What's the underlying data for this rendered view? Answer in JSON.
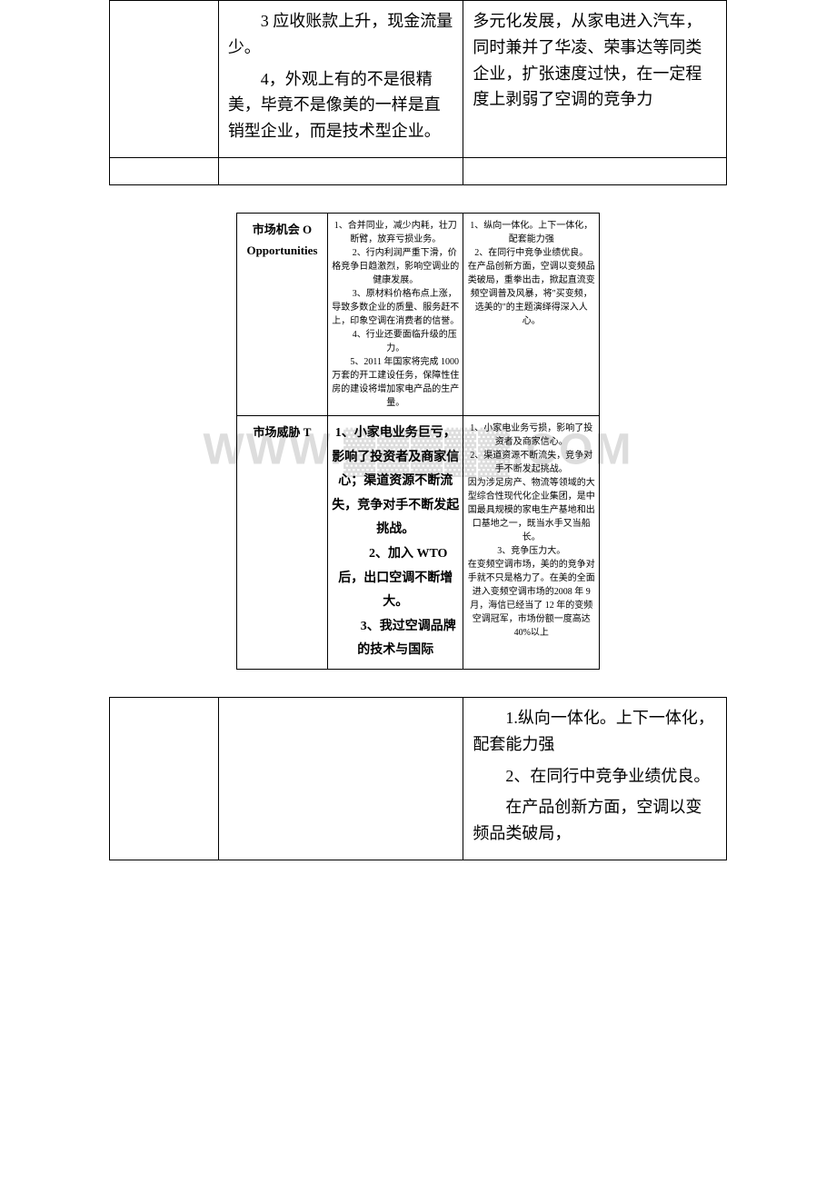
{
  "top": {
    "col2_p1": "　　3 应收账款上升，现金流量少。",
    "col2_p2": "　　4，外观上有的不是很精美，毕竟不是像美的一样是直销型企业，而是技术型企业。",
    "col3_p1": "多元化发展，从家电进入汽车，同时兼并了华凌、荣事达等同类企业，扩张速度过快，在一定程度上剥弱了空调的竞争力"
  },
  "middle": {
    "row1": {
      "label_cn": "市场机会 O",
      "label_en": "Opportunities",
      "col2": "1、合并同业，减少内耗，壮刀断臂，放弃亏损业务。\n　　2、行内利润严重下滑，价格竞争日趋激烈，影响空调业的健康发展。\n　　3、原材料价格布点上涨，导致多数企业的质量、服务赶不上，印象空调在消费者的信誉。\n　　4、行业还要面临升级的压力。\n　　5、2011 年国家将完成 1000 万套的开工建设任务，保障性住房的建设将增加家电产品的生产量。",
      "col3": "1、纵向一体化。上下一体化，配套能力强\n2、在同行中竞争业绩优良。\n在产品创新方面，空调以变频品类破局，重拳出击，掀起直流变频空调普及风暴，将\"买变频，选美的\"的主题演绎得深入人心。"
    },
    "row2": {
      "label_cn": "市场威胁 T",
      "col2_big": "1、小家电业务巨亏，影响了投资者及商家信心；渠道资源不断流失，竞争对手不断发起挑战。\n　　2、加入 WTO 后，出口空调不断增大。\n　　3、我过空调品牌的技术与国际",
      "col3": "1、小家电业务亏损，影响了投资者及商家信心。\n2、渠道资源不断流失，竞争对手不断发起挑战。\n因为涉足房产、物流等领域的大型综合性现代化企业集团，是中国最具规模的家电生产基地和出口基地之一，既当水手又当船长。\n3、竞争压力大。\n在变频空调市场，美的的竞争对手就不只是格力了。在美的全面进入变频空调市场的2008 年 9 月，海信已经当了 12 年的变频空调冠军，市场份额一度高达 40%以上"
    }
  },
  "bottom": {
    "col3_p1": "　　1.纵向一体化。上下一体化，配套能力强",
    "col3_p2": "　　2、在同行中竞争业绩优良。",
    "col3_p3": "　　在产品创新方面，空调以变频品类破局，"
  },
  "watermark": "WWW.▓▓▓▓▓.COM",
  "colors": {
    "text": "#000000",
    "border": "#000000",
    "watermark": "#dddddd",
    "background": "#ffffff"
  }
}
